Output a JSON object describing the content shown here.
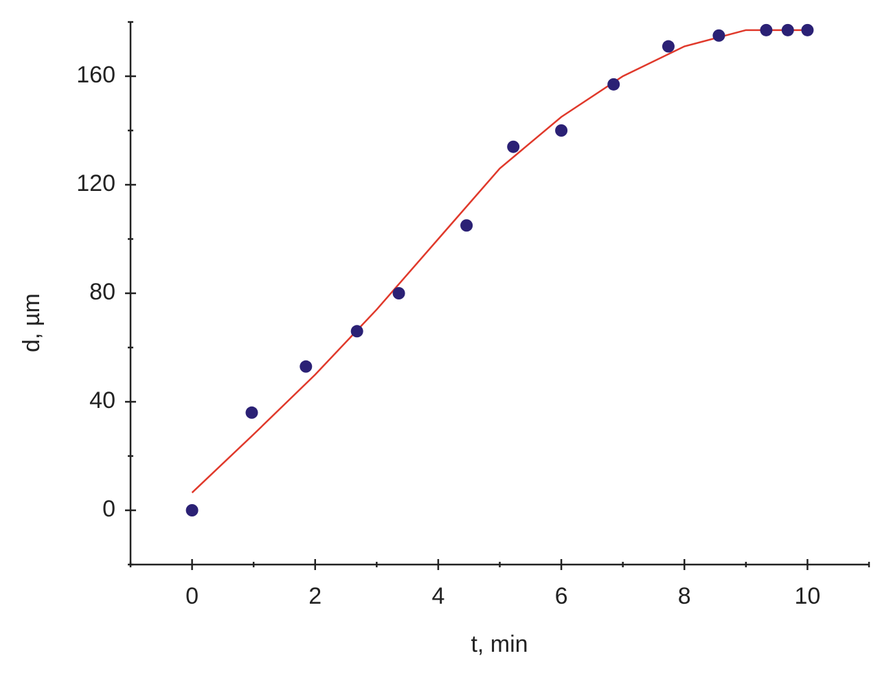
{
  "chart_data": {
    "type": "scatter",
    "xlabel": "t, min",
    "ylabel": "d, µm",
    "series": [
      {
        "type": "scatter",
        "color": "#2b2175",
        "x": [
          0,
          0.97,
          1.85,
          2.68,
          3.36,
          4.46,
          5.22,
          6.0,
          6.85,
          7.74,
          8.56,
          9.33,
          9.68,
          10
        ],
        "values": [
          0,
          36,
          53,
          66,
          80,
          105,
          134,
          140,
          157,
          171,
          175,
          177,
          177,
          177
        ]
      },
      {
        "type": "line",
        "color": "#e0392b",
        "x": [
          0,
          1,
          2,
          3,
          4,
          5,
          6,
          7,
          8,
          9,
          10
        ],
        "values": [
          6.5,
          28,
          50,
          74,
          100,
          126,
          145,
          160,
          171,
          177,
          177
        ]
      }
    ],
    "xlim": [
      -1,
      11
    ],
    "xticks": [
      0,
      2,
      4,
      6,
      8,
      10
    ],
    "xminorticks": [
      -1,
      1,
      3,
      5,
      7,
      9,
      11
    ],
    "ylim": [
      -20,
      180
    ],
    "yticks": [
      0,
      40,
      80,
      120,
      160
    ],
    "yminorticks": [
      -20,
      20,
      60,
      100,
      140,
      180
    ]
  }
}
